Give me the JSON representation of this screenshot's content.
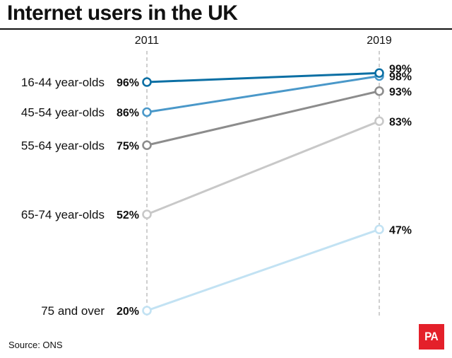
{
  "title": "Internet users in the UK",
  "source": "Source: ONS",
  "logo_text": "PA",
  "chart_data": {
    "type": "line",
    "title": "Internet users in the UK",
    "x": [
      "2011",
      "2019"
    ],
    "unit": "%",
    "series": [
      {
        "name": "16-44 year-olds",
        "values": [
          96,
          99
        ],
        "labels": [
          "96%",
          "99%"
        ],
        "color": "#0b6fa4"
      },
      {
        "name": "45-54 year-olds",
        "values": [
          86,
          98
        ],
        "labels": [
          "86%",
          "98%"
        ],
        "color": "#4a98c9"
      },
      {
        "name": "55-64 year-olds",
        "values": [
          75,
          93
        ],
        "labels": [
          "75%",
          "93%"
        ],
        "color": "#8c8c8c"
      },
      {
        "name": "65-74 year-olds",
        "values": [
          52,
          83
        ],
        "labels": [
          "52%",
          "83%"
        ],
        "color": "#c8c8c8"
      },
      {
        "name": "75 and over",
        "values": [
          20,
          47
        ],
        "labels": [
          "20%",
          "47%"
        ],
        "color": "#c2e2f3"
      }
    ],
    "grid": false,
    "legend": "left"
  }
}
